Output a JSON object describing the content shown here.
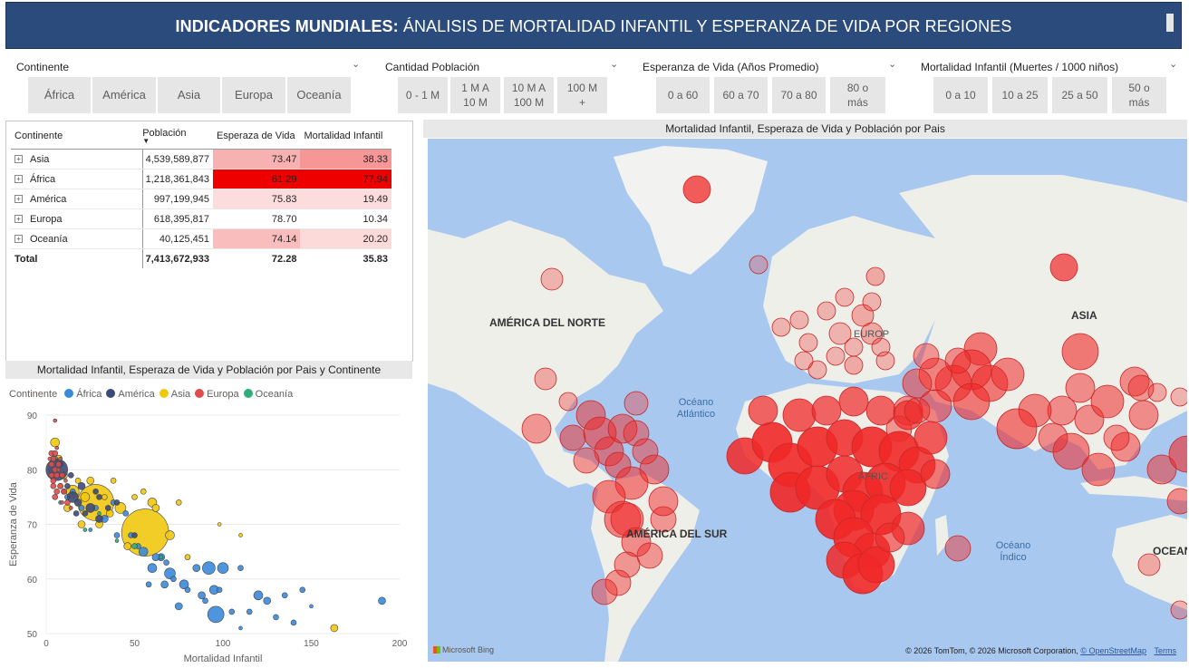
{
  "header": {
    "title_bold": "INDICADORES MUNDIALES:",
    "title_rest": " ÁNALISIS DE MORTALIDAD INFANTIL Y ESPERANZA DE VIDA POR REGIONES"
  },
  "slicers": {
    "continente": {
      "title": "Continente",
      "options": [
        "África",
        "América",
        "Asia",
        "Europa",
        "Oceanía"
      ]
    },
    "poblacion": {
      "title": "Cantidad Población",
      "options": [
        "0 - 1 M",
        "1 M A 10 M",
        "10 M A 100 M",
        "100 M +"
      ]
    },
    "esperanza": {
      "title": "Esperanza de Vida (Años Promedio)",
      "options": [
        "0 a 60",
        "60 a 70",
        "70 a 80",
        "80 o más"
      ]
    },
    "mortalidad": {
      "title": "Mortalidad Infantil (Muertes / 1000 niños)",
      "options": [
        "0 a 10",
        "10 a 25",
        "25 a 50",
        "50 o más"
      ]
    }
  },
  "table": {
    "headers": [
      "Continente",
      "Población",
      "Esperaza de Vida",
      "Mortalidad Infantil"
    ],
    "rows": [
      {
        "name": "Asia",
        "pop": "4,539,589,877",
        "life": "73.47",
        "mort": "38.33",
        "life_bg": "#f8b1b1",
        "mort_bg": "#f69696"
      },
      {
        "name": "África",
        "pop": "1,218,361,843",
        "life": "61.29",
        "mort": "77.94",
        "life_bg": "#ee0000",
        "mort_bg": "#ee0000"
      },
      {
        "name": "América",
        "pop": "997,199,945",
        "life": "75.83",
        "mort": "19.49",
        "life_bg": "#fcdcdc",
        "mort_bg": "#fcdcdc"
      },
      {
        "name": "Europa",
        "pop": "618,395,817",
        "life": "78.70",
        "mort": "10.34",
        "life_bg": "#ffffff",
        "mort_bg": "#ffffff"
      },
      {
        "name": "Oceanía",
        "pop": "40,125,451",
        "life": "74.14",
        "mort": "20.20",
        "life_bg": "#f9bdbd",
        "mort_bg": "#fcdada"
      }
    ],
    "total": {
      "name": "Total",
      "pop": "7,413,672,933",
      "life": "72.28",
      "mort": "35.83"
    }
  },
  "scatter": {
    "title": "Mortalidad Infantil, Esperaza de Vida y Población por Pais y Continente",
    "legend_title": "Continente",
    "colors": {
      "África": "#3b8ad9",
      "América": "#3c4a78",
      "Asia": "#f2c80f",
      "Europa": "#e04b4b",
      "Oceanía": "#2fae7a"
    },
    "chart_data": {
      "type": "scatter",
      "xlabel": "Mortalidad Infantil",
      "ylabel": "Esperanza de Vida",
      "xlim": [
        0,
        200
      ],
      "ylim": [
        50,
        90
      ],
      "xticks": [
        "0",
        "50",
        "100",
        "150",
        "200"
      ],
      "yticks": [
        "50",
        "60",
        "70",
        "80",
        "90"
      ],
      "series": [
        {
          "name": "África",
          "points": [
            [
              96,
              53.5,
              9
            ],
            [
              92,
              62,
              7
            ],
            [
              70,
              61,
              6
            ],
            [
              78,
              59,
              5
            ],
            [
              55,
              65,
              5
            ],
            [
              60,
              62,
              5
            ],
            [
              65,
              64,
              4
            ],
            [
              67,
              59,
              4
            ],
            [
              75,
              55,
              4
            ],
            [
              88,
              57,
              4
            ],
            [
              95,
              58,
              5
            ],
            [
              100,
              62,
              6
            ],
            [
              85,
              62,
              4
            ],
            [
              110,
              62,
              3
            ],
            [
              120,
              57,
              5
            ],
            [
              125,
              56,
              4
            ],
            [
              135,
              57,
              3
            ],
            [
              145,
              58,
              3
            ],
            [
              130,
              53,
              3
            ],
            [
              110,
              51,
              2
            ],
            [
              105,
              54,
              3
            ],
            [
              150,
              55,
              2
            ],
            [
              190,
              56,
              4
            ],
            [
              80,
              58,
              3
            ],
            [
              58,
              59,
              3
            ],
            [
              52,
              66,
              3
            ],
            [
              48,
              68,
              3
            ],
            [
              40,
              68,
              3
            ],
            [
              33,
              71,
              4
            ],
            [
              28,
              73,
              3
            ],
            [
              45,
              72,
              3
            ],
            [
              38,
              74,
              3
            ],
            [
              20,
              73,
              3
            ],
            [
              15,
              76,
              3
            ],
            [
              12,
              75,
              3
            ],
            [
              8,
              74,
              2
            ],
            [
              62,
              64,
              4
            ],
            [
              68,
              63,
              3
            ],
            [
              72,
              60,
              3
            ],
            [
              90,
              56,
              3
            ],
            [
              98,
              58,
              3
            ],
            [
              115,
              54,
              3
            ],
            [
              140,
              52,
              3
            ],
            [
              25,
              69,
              2
            ]
          ]
        },
        {
          "name": "América",
          "points": [
            [
              6,
              80,
              12
            ],
            [
              15,
              75,
              6
            ],
            [
              25,
              73,
              5
            ],
            [
              18,
              74,
              4
            ],
            [
              20,
              77,
              4
            ],
            [
              30,
              71,
              4
            ],
            [
              12,
              77,
              3
            ],
            [
              8,
              81,
              3
            ],
            [
              22,
              72,
              3
            ],
            [
              35,
              73,
              3
            ],
            [
              14,
              79,
              3
            ],
            [
              10,
              76,
              3
            ],
            [
              28,
              76,
              3
            ],
            [
              40,
              74,
              3
            ],
            [
              50,
              68,
              3
            ],
            [
              17,
              72,
              3
            ],
            [
              30,
              75,
              3
            ]
          ]
        },
        {
          "name": "Asia",
          "points": [
            [
              28,
              74,
              20
            ],
            [
              56,
              68.5,
              26
            ],
            [
              15,
              76,
              7
            ],
            [
              42,
              73,
              6
            ],
            [
              22,
              75,
              5
            ],
            [
              10,
              79,
              4
            ],
            [
              5,
              85,
              5
            ],
            [
              7,
              82,
              4
            ],
            [
              30,
              70,
              4
            ],
            [
              36,
              72,
              4
            ],
            [
              12,
              73,
              4
            ],
            [
              20,
              70,
              4
            ],
            [
              60,
              74,
              5
            ],
            [
              70,
              68,
              5
            ],
            [
              65,
              64,
              3
            ],
            [
              80,
              64,
              3
            ],
            [
              50,
              75,
              3
            ],
            [
              38,
              78,
              3
            ],
            [
              18,
              78,
              3
            ],
            [
              25,
              78,
              4
            ],
            [
              46,
              66,
              4
            ],
            [
              75,
              74,
              3
            ],
            [
              62,
              73,
              4
            ],
            [
              55,
              76,
              3
            ],
            [
              33,
              75,
              3
            ],
            [
              8,
              77,
              3
            ],
            [
              3,
              80,
              3
            ],
            [
              163,
              51,
              4
            ],
            [
              110,
              68,
              2
            ],
            [
              98,
              70,
              2
            ]
          ]
        },
        {
          "name": "Europa",
          "points": [
            [
              4,
              82,
              3
            ],
            [
              3,
              81,
              3
            ],
            [
              5,
              80,
              3
            ],
            [
              6,
              79,
              3
            ],
            [
              4,
              78,
              3
            ],
            [
              8,
              77,
              3
            ],
            [
              3,
              83,
              3
            ],
            [
              5,
              83,
              3
            ],
            [
              7,
              81,
              3
            ],
            [
              9,
              79,
              3
            ],
            [
              10,
              76,
              3
            ],
            [
              12,
              74,
              3
            ],
            [
              6,
              76,
              3
            ],
            [
              4,
              77,
              3
            ],
            [
              5,
              75,
              3
            ],
            [
              3,
              79,
              3
            ],
            [
              7,
              80,
              2
            ],
            [
              2,
              82,
              2
            ],
            [
              8,
              82,
              2
            ],
            [
              6,
              84,
              2
            ],
            [
              11,
              78,
              2
            ],
            [
              5,
              89,
              2
            ],
            [
              9,
              74,
              2
            ],
            [
              14,
              73,
              2
            ]
          ]
        },
        {
          "name": "Oceanía",
          "points": [
            [
              5,
              82,
              3
            ],
            [
              6,
              81,
              2
            ],
            [
              50,
              66,
              3
            ],
            [
              22,
              69,
              2
            ],
            [
              30,
              72,
              2
            ],
            [
              65,
              64,
              2
            ],
            [
              40,
              67,
              2
            ]
          ]
        }
      ]
    }
  },
  "map": {
    "title": "Mortalidad Infantil, Esperaza de Vida y Población por Pais",
    "labels": {
      "north_america": "AMÉRICA DEL NORTE",
      "south_america": "AMÉRICA DEL SUR",
      "asia": "ASIA",
      "europe": "EUROP",
      "africa": "ÁFRIC",
      "oceania": "OCEAN",
      "atlantic": "Océano\nAtlántico",
      "indian": "Océano\nÍndico"
    },
    "brand": "Microsoft Bing",
    "attribution": "© 2026 TomTom, © 2026 Microsoft Corporation,",
    "osm_link": "© OpenStreetMap",
    "terms": "Terms"
  }
}
